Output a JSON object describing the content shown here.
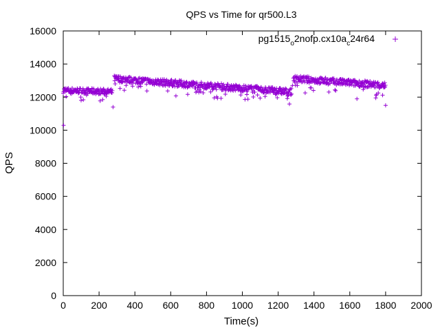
{
  "chart_data": {
    "type": "scatter",
    "title": "QPS vs Time for qr500.L3",
    "xlabel": "Time(s)",
    "ylabel": "QPS",
    "xlim": [
      0,
      2000
    ],
    "ylim": [
      0,
      16000
    ],
    "x_ticks": [
      0,
      200,
      400,
      600,
      800,
      1000,
      1200,
      1400,
      1600,
      1800,
      2000
    ],
    "y_ticks": [
      0,
      2000,
      4000,
      6000,
      8000,
      10000,
      12000,
      14000,
      16000
    ],
    "grid": false,
    "legend_position": "top-right",
    "marker": "+",
    "series": [
      {
        "name": "pg1515_o2nofp.cx10a_c24r64",
        "legend_parts": [
          {
            "text": "pg1515",
            "sub": false
          },
          {
            "text": "o",
            "sub": true
          },
          {
            "text": "2nofp.cx10a",
            "sub": false
          },
          {
            "text": "c",
            "sub": true
          },
          {
            "text": "24r64",
            "sub": false
          }
        ],
        "color": "#9400d3",
        "segments": [
          {
            "x_start": 0,
            "x_end": 275,
            "y_start": 12450,
            "y_end": 12350,
            "spread": 350,
            "step": 2
          },
          {
            "x_start": 285,
            "x_end": 1275,
            "y_start": 13150,
            "y_end": 12350,
            "spread": 400,
            "step": 2
          },
          {
            "x_start": 1285,
            "x_end": 1800,
            "y_start": 13150,
            "y_end": 12750,
            "spread": 400,
            "step": 2
          }
        ],
        "outliers": [
          {
            "x": 2,
            "y": 10300
          },
          {
            "x": 278,
            "y": 11400
          },
          {
            "x": 1800,
            "y": 11500
          },
          {
            "x": 290,
            "y": 12800
          },
          {
            "x": 1280,
            "y": 12700
          },
          {
            "x": 1640,
            "y": 11900
          },
          {
            "x": 1745,
            "y": 11950
          },
          {
            "x": 220,
            "y": 11850
          }
        ]
      }
    ]
  }
}
